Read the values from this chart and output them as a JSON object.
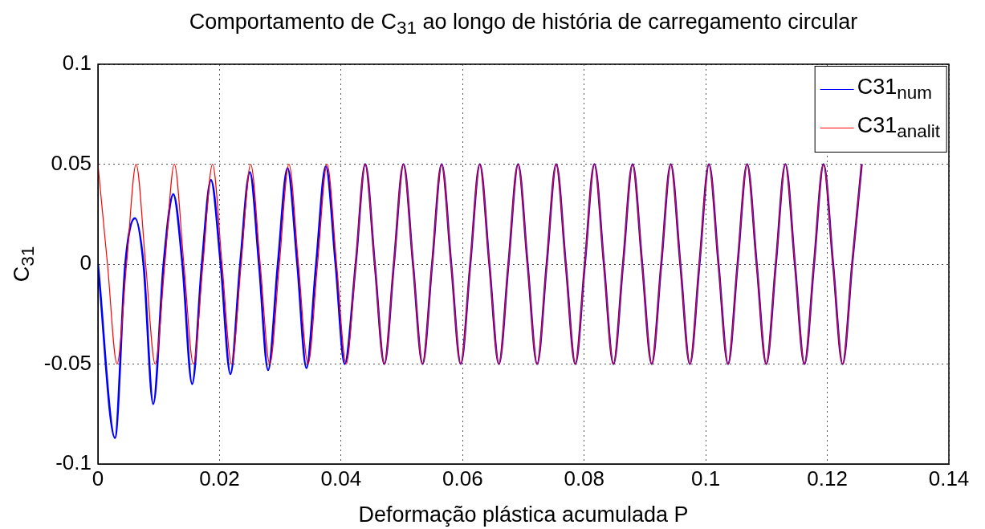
{
  "chart_data": {
    "type": "line",
    "title": "Comportamento de C$_{31}$ ao longo de história de carregamento circular",
    "xlabel": "Deformação plástica acumulada P",
    "ylabel": "C$_{31}$",
    "xlim": [
      0,
      0.14
    ],
    "xticks": [
      0,
      0.02,
      0.04,
      0.06,
      0.08,
      0.1,
      0.12,
      0.14
    ],
    "ylim": [
      -0.1,
      0.1
    ],
    "yticks": [
      -0.1,
      -0.05,
      0,
      0.05,
      0.1
    ],
    "grid": true,
    "legend": "top right",
    "marker": "none",
    "line_style": "solid",
    "series": [
      {
        "name": "C31$_{num}$",
        "color": "#0000ff",
        "x": [
          0,
          0.0028,
          0.0045,
          0.0061,
          0.0075,
          0.0091,
          0.0108,
          0.0124,
          0.0139,
          0.0155,
          0.0171,
          0.0186,
          0.0202,
          0.0218,
          0.0234,
          0.025,
          0.0265,
          0.028,
          0.0296,
          0.0312,
          0.0328,
          0.0343,
          0.0359,
          0.0375,
          0.0391,
          0.0406,
          0.04241,
          0.04398,
          0.04555,
          0.04712,
          0.04869,
          0.05027,
          0.05184,
          0.05341,
          0.05498,
          0.05655,
          0.05812,
          0.05969,
          0.06126,
          0.06283,
          0.0644,
          0.06597,
          0.06754,
          0.06912,
          0.07069,
          0.07226,
          0.07383,
          0.0754,
          0.07697,
          0.07854,
          0.08011,
          0.08168,
          0.08325,
          0.08482,
          0.08639,
          0.08796,
          0.08954,
          0.09111,
          0.09268,
          0.09425,
          0.09582,
          0.09739,
          0.09896,
          0.10053,
          0.1021,
          0.10367,
          0.10524,
          0.10681,
          0.10838,
          0.10996,
          0.11153,
          0.1131,
          0.11467,
          0.11624,
          0.11781,
          0.11938,
          0.12095,
          0.12252,
          0.12409,
          0.12566
        ],
        "values": [
          0,
          -0.087,
          0,
          0.023,
          0,
          -0.07,
          0,
          0.035,
          0,
          -0.06,
          0,
          0.042,
          0,
          -0.055,
          0,
          0.046,
          0,
          -0.053,
          0,
          0.048,
          0,
          -0.052,
          0,
          0.049,
          0,
          -0.05,
          0,
          0.05,
          0,
          -0.05,
          0,
          0.05,
          0,
          -0.05,
          0,
          0.05,
          0,
          -0.05,
          0,
          0.05,
          0,
          -0.05,
          0,
          0.05,
          0,
          -0.05,
          0,
          0.05,
          0,
          -0.05,
          0,
          0.05,
          0,
          -0.05,
          0,
          0.05,
          0,
          -0.05,
          0,
          0.05,
          0,
          -0.05,
          0,
          0.05,
          0,
          -0.05,
          0,
          0.05,
          0,
          -0.05,
          0,
          0.05,
          0,
          -0.05,
          0,
          0.05,
          0,
          -0.05,
          0,
          0.05
        ]
      },
      {
        "name": "C31$_{analit}$",
        "color": "#ff0000",
        "x": [
          0,
          0.00157,
          0.00314,
          0.00471,
          0.00628,
          0.00785,
          0.00942,
          0.011,
          0.01257,
          0.01414,
          0.01571,
          0.01728,
          0.01885,
          0.02042,
          0.02199,
          0.02356,
          0.02513,
          0.0267,
          0.02827,
          0.02985,
          0.03142,
          0.03299,
          0.03456,
          0.03613,
          0.0377,
          0.03927,
          0.04084,
          0.04241,
          0.04398,
          0.04555,
          0.04712,
          0.04869,
          0.05027,
          0.05184,
          0.05341,
          0.05498,
          0.05655,
          0.05812,
          0.05969,
          0.06126,
          0.06283,
          0.0644,
          0.06597,
          0.06754,
          0.06912,
          0.07069,
          0.07226,
          0.07383,
          0.0754,
          0.07697,
          0.07854,
          0.08011,
          0.08168,
          0.08325,
          0.08482,
          0.08639,
          0.08796,
          0.08954,
          0.09111,
          0.09268,
          0.09425,
          0.09582,
          0.09739,
          0.09896,
          0.10053,
          0.1021,
          0.10367,
          0.10524,
          0.10681,
          0.10838,
          0.10996,
          0.11153,
          0.1131,
          0.11467,
          0.11624,
          0.11781,
          0.11938,
          0.12095,
          0.12252,
          0.12409,
          0.12566
        ],
        "values": [
          0.05,
          0,
          -0.05,
          0,
          0.05,
          0,
          -0.05,
          0,
          0.05,
          0,
          -0.05,
          0,
          0.05,
          0,
          -0.05,
          0,
          0.05,
          0,
          -0.05,
          0,
          0.05,
          0,
          -0.05,
          0,
          0.05,
          0,
          -0.05,
          0,
          0.05,
          0,
          -0.05,
          0,
          0.05,
          0,
          -0.05,
          0,
          0.05,
          0,
          -0.05,
          0,
          0.05,
          0,
          -0.05,
          0,
          0.05,
          0,
          -0.05,
          0,
          0.05,
          0,
          -0.05,
          0,
          0.05,
          0,
          -0.05,
          0,
          0.05,
          0,
          -0.05,
          0,
          0.05,
          0,
          -0.05,
          0,
          0.05,
          0,
          -0.05,
          0,
          0.05,
          0,
          -0.05,
          0,
          0.05,
          0,
          -0.05,
          0,
          0.05,
          0,
          -0.05,
          0,
          0.05
        ]
      }
    ]
  }
}
